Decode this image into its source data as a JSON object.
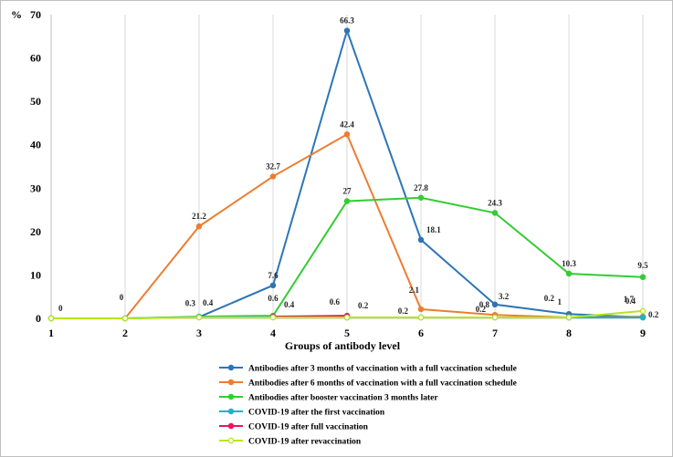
{
  "chart_data": {
    "type": "line",
    "ylabel": "%",
    "xlabel": "Groups of antibody level",
    "x": [
      1,
      2,
      3,
      4,
      5,
      6,
      7,
      8,
      9
    ],
    "ylim": [
      0,
      70
    ],
    "yticks": [
      0,
      10,
      20,
      30,
      40,
      50,
      60,
      70
    ],
    "grid": "vertical",
    "legend": "bottom",
    "series": [
      {
        "name": "Antibodies after 3 months of vaccination with a full vaccination schedule",
        "color": "#2e75b6",
        "values": [
          0,
          0,
          0.3,
          7.6,
          66.3,
          18.1,
          3.2,
          1,
          0.2
        ],
        "labels": [
          "",
          "",
          "0.3",
          "7.6",
          "66.3",
          "18.1",
          "3.2",
          "1",
          "0.2"
        ]
      },
      {
        "name": "Antibodies after 6 months of vaccination with a full vaccination schedule",
        "color": "#ed7d31",
        "values": [
          0,
          0,
          21.2,
          32.7,
          42.4,
          2.1,
          0.8,
          0.2,
          0.4
        ],
        "labels": [
          "",
          "0",
          "21.2",
          "32.7",
          "42.4",
          "2.1",
          "0.8",
          "0.2",
          "0.4"
        ]
      },
      {
        "name": "Antibodies after booster vaccination 3 months later",
        "color": "#33cc33",
        "values": [
          0,
          0,
          0.4,
          0.6,
          27,
          27.8,
          24.3,
          10.3,
          9.5
        ],
        "labels": [
          "",
          "",
          "0.4",
          "0.6",
          "27",
          "27.8",
          "24.3",
          "10.3",
          "9.5"
        ]
      },
      {
        "name": "COVID-19 after the first vaccination",
        "color": "#1fb2c9",
        "values": [
          0,
          0,
          0.3,
          0.4,
          0.2,
          0.2,
          0.2,
          0.2,
          0.2
        ],
        "labels": [
          "",
          "",
          "",
          "0.4",
          "0.2",
          "0.2",
          "0.2",
          "",
          ""
        ]
      },
      {
        "name": "COVID-19 after full vaccination",
        "color": "#e6175c",
        "values": [
          null,
          null,
          null,
          0.4,
          0.6,
          null,
          null,
          null,
          null
        ],
        "labels": [
          "",
          "",
          "",
          "",
          "0.6",
          "",
          "",
          "",
          ""
        ]
      },
      {
        "name": "COVID-19 after revaccination",
        "color": "#b6e61a",
        "values": [
          0,
          0,
          0.2,
          0.2,
          0.2,
          0.2,
          0.2,
          0.2,
          1.7
        ],
        "labels": [
          "0",
          "",
          "",
          "",
          "",
          "",
          "",
          "",
          "1.7"
        ]
      }
    ]
  }
}
